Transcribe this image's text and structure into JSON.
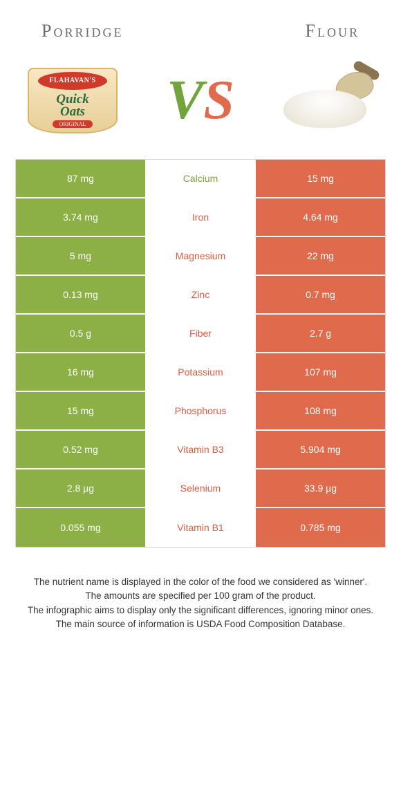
{
  "colors": {
    "green": "#8cb046",
    "orange": "#e06b4c",
    "cell_bg_plain": "#f4f4f4",
    "mid_green_text": "#7ca03a",
    "mid_orange_text": "#d85e3f"
  },
  "header": {
    "left_title": "Porridge",
    "right_title": "Flour",
    "vs_v": "V",
    "vs_s": "S",
    "porridge_brand": "FLAHAVAN'S",
    "porridge_main1": "Quick",
    "porridge_main2": "Oats",
    "porridge_sub": "ORIGINAL"
  },
  "rows": [
    {
      "left": "87 mg",
      "mid": "Calcium",
      "right": "15 mg",
      "winner": "left"
    },
    {
      "left": "3.74 mg",
      "mid": "Iron",
      "right": "4.64 mg",
      "winner": "right"
    },
    {
      "left": "5 mg",
      "mid": "Magnesium",
      "right": "22 mg",
      "winner": "right"
    },
    {
      "left": "0.13 mg",
      "mid": "Zinc",
      "right": "0.7 mg",
      "winner": "right"
    },
    {
      "left": "0.5 g",
      "mid": "Fiber",
      "right": "2.7 g",
      "winner": "right"
    },
    {
      "left": "16 mg",
      "mid": "Potassium",
      "right": "107 mg",
      "winner": "right"
    },
    {
      "left": "15 mg",
      "mid": "Phosphorus",
      "right": "108 mg",
      "winner": "right"
    },
    {
      "left": "0.52 mg",
      "mid": "Vitamin B3",
      "right": "5.904 mg",
      "winner": "right"
    },
    {
      "left": "2.8 µg",
      "mid": "Selenium",
      "right": "33.9 µg",
      "winner": "right"
    },
    {
      "left": "0.055 mg",
      "mid": "Vitamin B1",
      "right": "0.785 mg",
      "winner": "right"
    }
  ],
  "footer": {
    "line1": "The nutrient name is displayed in the color of the food we considered as 'winner'.",
    "line2": "The amounts are specified per 100 gram of the product.",
    "line3": "The infographic aims to display only the significant differences, ignoring minor ones.",
    "line4": "The main source of information is USDA Food Composition Database."
  }
}
